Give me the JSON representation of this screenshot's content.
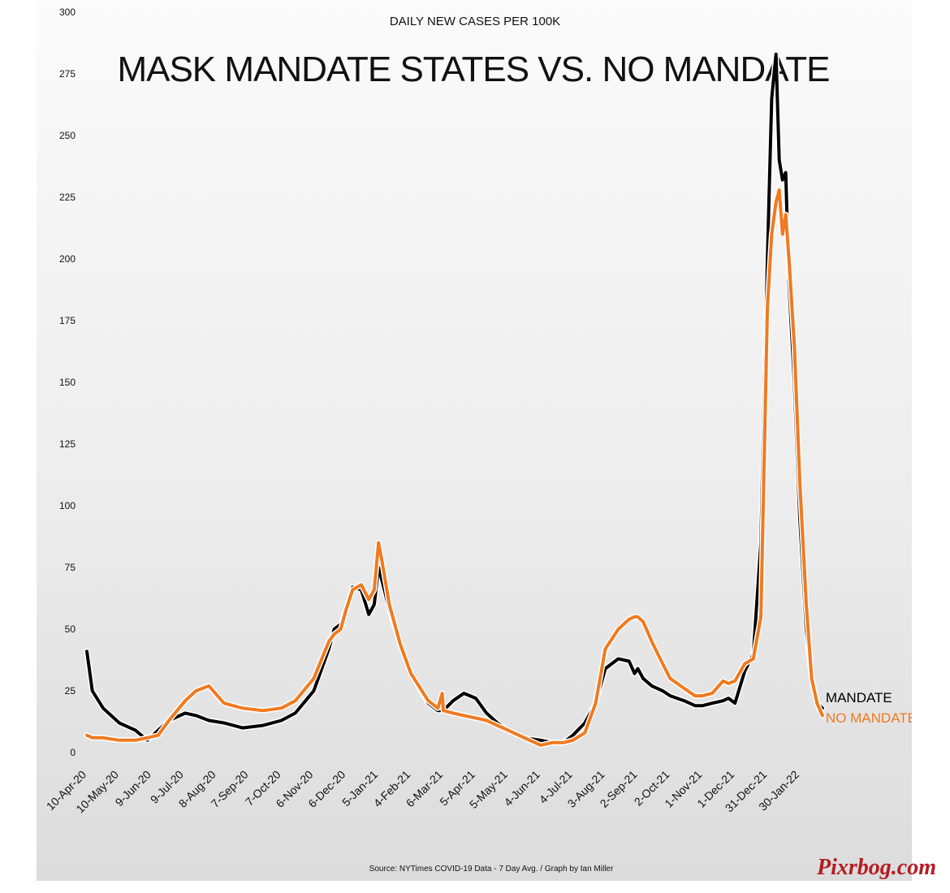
{
  "colors": {
    "mandate": "#000000",
    "no_mandate": "#f07a20",
    "watermark": "#b51c23"
  },
  "watermark": "Pixrbog.com",
  "source": "Source: NYTimes COVID-19 Data - 7 Day Avg. / Graph by Ian Miller",
  "chart_data": {
    "type": "line",
    "subtitle": "DAILY NEW CASES PER 100K",
    "title": "MASK MANDATE STATES VS. NO MANDATE",
    "ylim": [
      0,
      300
    ],
    "yticks": [
      0,
      25,
      50,
      75,
      100,
      125,
      150,
      175,
      200,
      225,
      250,
      275,
      300
    ],
    "grid": false,
    "legend_position": "right, at line ends",
    "x_tick_labels": [
      "10-Apr-20",
      "10-May-20",
      "9-Jun-20",
      "9-Jul-20",
      "8-Aug-20",
      "7-Sep-20",
      "7-Oct-20",
      "6-Nov-20",
      "6-Dec-20",
      "5-Jan-21",
      "4-Feb-21",
      "6-Mar-21",
      "5-Apr-21",
      "5-May-21",
      "4-Jun-21",
      "4-Jul-21",
      "3-Aug-21",
      "2-Sep-21",
      "2-Oct-21",
      "1-Nov-21",
      "1-Dec-21",
      "31-Dec-21",
      "30-Jan-22"
    ],
    "x": [
      "2020-04-10",
      "2020-04-15",
      "2020-04-25",
      "2020-05-10",
      "2020-05-25",
      "2020-06-05",
      "2020-06-15",
      "2020-06-25",
      "2020-07-10",
      "2020-07-20",
      "2020-08-01",
      "2020-08-15",
      "2020-09-01",
      "2020-09-20",
      "2020-10-07",
      "2020-10-20",
      "2020-11-06",
      "2020-11-20",
      "2020-11-25",
      "2020-12-01",
      "2020-12-06",
      "2020-12-12",
      "2020-12-20",
      "2020-12-27",
      "2021-01-01",
      "2021-01-05",
      "2021-01-08",
      "2021-01-15",
      "2021-01-25",
      "2021-02-04",
      "2021-02-20",
      "2021-03-01",
      "2021-03-05",
      "2021-03-06",
      "2021-03-15",
      "2021-03-25",
      "2021-04-05",
      "2021-04-15",
      "2021-04-25",
      "2021-05-05",
      "2021-05-20",
      "2021-06-04",
      "2021-06-15",
      "2021-06-25",
      "2021-07-04",
      "2021-07-15",
      "2021-07-25",
      "2021-08-03",
      "2021-08-15",
      "2021-08-25",
      "2021-08-30",
      "2021-09-02",
      "2021-09-07",
      "2021-09-15",
      "2021-09-25",
      "2021-10-02",
      "2021-10-15",
      "2021-10-25",
      "2021-11-01",
      "2021-11-10",
      "2021-11-20",
      "2021-11-25",
      "2021-12-01",
      "2021-12-10",
      "2021-12-18",
      "2021-12-25",
      "2021-12-31",
      "2022-01-04",
      "2022-01-08",
      "2022-01-11",
      "2022-01-14",
      "2022-01-17",
      "2022-01-20",
      "2022-01-25",
      "2022-01-30",
      "2022-02-05",
      "2022-02-10",
      "2022-02-15",
      "2022-02-20"
    ],
    "series": [
      {
        "name": "MANDATE",
        "values": [
          41,
          25,
          18,
          12,
          9,
          5,
          9,
          13,
          16,
          15,
          13,
          12,
          10,
          11,
          13,
          16,
          25,
          42,
          50,
          52,
          58,
          67,
          66,
          56,
          60,
          75,
          70,
          58,
          44,
          32,
          20,
          17,
          17,
          17,
          21,
          24,
          22,
          16,
          12,
          9,
          6,
          5,
          4,
          4,
          7,
          12,
          20,
          34,
          38,
          37,
          32,
          34,
          30,
          27,
          25,
          23,
          21,
          19,
          19,
          20,
          21,
          22,
          20,
          33,
          40,
          85,
          200,
          265,
          283,
          240,
          232,
          235,
          190,
          150,
          95,
          50,
          30,
          20,
          18
        ]
      },
      {
        "name": "NO MANDATE",
        "values": [
          7,
          6,
          6,
          5,
          5,
          6,
          7,
          13,
          21,
          25,
          27,
          20,
          18,
          17,
          18,
          21,
          30,
          45,
          48,
          50,
          58,
          66,
          68,
          62,
          66,
          85,
          78,
          60,
          44,
          32,
          21,
          18,
          24,
          17,
          16,
          15,
          14,
          13,
          11,
          9,
          6,
          3,
          4,
          4,
          5,
          8,
          20,
          42,
          50,
          54,
          55,
          55,
          53,
          45,
          36,
          30,
          26,
          23,
          23,
          24,
          29,
          28,
          29,
          36,
          38,
          55,
          180,
          210,
          223,
          228,
          210,
          218,
          200,
          165,
          110,
          60,
          30,
          20,
          15
        ]
      }
    ]
  }
}
